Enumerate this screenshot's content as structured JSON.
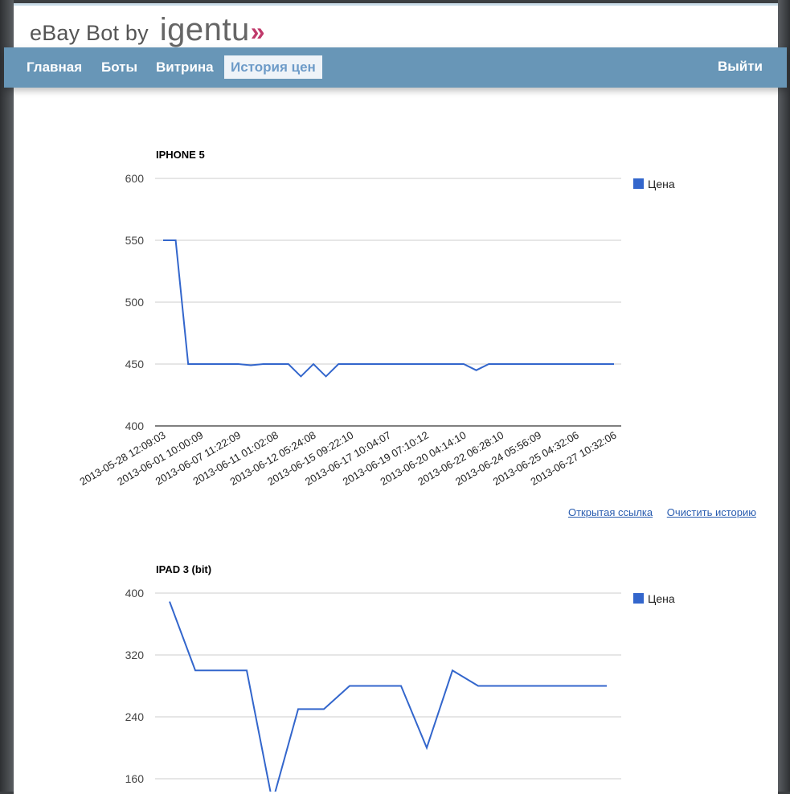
{
  "header": {
    "logo_text": "eBay Bot by",
    "brand": "igentu",
    "brand_arrows": "»"
  },
  "nav": {
    "items": [
      {
        "label": "Главная",
        "active": false
      },
      {
        "label": "Боты",
        "active": false
      },
      {
        "label": "Витрина",
        "active": false
      },
      {
        "label": "История цен",
        "active": true
      }
    ],
    "logout": "Выйти"
  },
  "colors": {
    "nav_bg": "#6896b7",
    "line": "#3366cc",
    "accent_brand": "#c03a6b",
    "link": "#2a5db0"
  },
  "links": {
    "open_link": "Открытая ссылка",
    "clear_history": "Очистить историю"
  },
  "chart_data": [
    {
      "type": "line",
      "title": "IPHONE 5",
      "legend": [
        "Цена"
      ],
      "legend_position": "right",
      "ylim": [
        400,
        600
      ],
      "yticks": [
        400,
        450,
        500,
        550,
        600
      ],
      "grid": true,
      "xlabel": "",
      "ylabel": "",
      "x_tick_labels": [
        "2013-05-28 12:09:03",
        "2013-06-01 10:00:09",
        "2013-06-07 11:22:09",
        "2013-06-11 01:02:08",
        "2013-06-12 05:24:08",
        "2013-06-15 09:22:10",
        "2013-06-17 10:04:07",
        "2013-06-19 07:10:12",
        "2013-06-20 04:14:10",
        "2013-06-22 06:28:10",
        "2013-06-24 05:56:09",
        "2013-06-25 04:32:06",
        "2013-06-27 10:32:06"
      ],
      "series": [
        {
          "name": "Цена",
          "values": [
            550,
            550,
            450,
            450,
            450,
            450,
            450,
            449,
            450,
            450,
            450,
            440,
            450,
            440,
            450,
            450,
            450,
            450,
            450,
            450,
            450,
            450,
            450,
            450,
            450,
            445,
            450,
            450,
            450,
            450,
            450,
            450,
            450,
            450,
            450,
            450,
            450
          ]
        }
      ]
    },
    {
      "type": "line",
      "title": "IPAD 3 (bit)",
      "legend": [
        "Цена"
      ],
      "legend_position": "right",
      "ylim": [
        160,
        400
      ],
      "yticks": [
        160,
        240,
        320,
        400
      ],
      "grid": true,
      "xlabel": "",
      "ylabel": "",
      "series": [
        {
          "name": "Цена",
          "values": [
            389,
            300,
            300,
            300,
            130,
            250,
            250,
            280,
            280,
            280,
            200,
            300,
            280,
            280,
            280,
            280,
            280,
            280
          ]
        }
      ]
    }
  ]
}
